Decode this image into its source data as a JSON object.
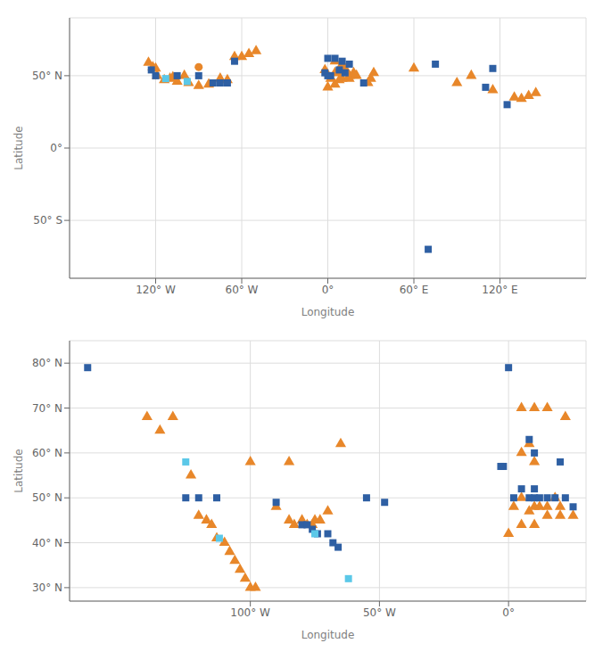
{
  "chart_data": [
    {
      "type": "scatter",
      "x_label": "Longitude",
      "y_label": "Latitude",
      "xlim": [
        -180,
        180
      ],
      "ylim": [
        -90,
        90
      ],
      "xticks": [
        {
          "value": -120,
          "label": "120° W"
        },
        {
          "value": -60,
          "label": "60° W"
        },
        {
          "value": 0,
          "label": "0°"
        },
        {
          "value": 60,
          "label": "60° E"
        },
        {
          "value": 120,
          "label": "120° E"
        }
      ],
      "yticks": [
        {
          "value": -50,
          "label": "50° S"
        },
        {
          "value": 0,
          "label": "0°"
        },
        {
          "value": 50,
          "label": "50° N"
        }
      ],
      "grid": true,
      "series": [
        {
          "color": "#E8872A",
          "marker": "triangle",
          "x": [
            -125,
            -122,
            -120,
            -65,
            -60,
            -55,
            -50,
            -119,
            -114,
            -110,
            -108,
            -105,
            -100,
            -97,
            -90,
            -83,
            -75,
            -70,
            5,
            10,
            8,
            15,
            20,
            2,
            5,
            -2,
            0,
            5,
            10,
            15,
            28,
            30,
            32,
            60,
            90,
            100,
            115,
            130,
            135,
            140,
            145,
            12,
            8,
            18
          ],
          "values": [
            59,
            56,
            55,
            63,
            63,
            65,
            67,
            50,
            47,
            48,
            49,
            46,
            50,
            45,
            43,
            44,
            48,
            47,
            60,
            58,
            52,
            50,
            50,
            48,
            52,
            54,
            42,
            44,
            48,
            48,
            45,
            48,
            52,
            55,
            45,
            50,
            40,
            35,
            34,
            36,
            38,
            55,
            47,
            52
          ]
        },
        {
          "color": "#2E5FA3",
          "marker": "square",
          "x": [
            -123,
            -120,
            -105,
            -90,
            -80,
            -75,
            -70,
            -65,
            5,
            10,
            8,
            12,
            2,
            -2,
            0,
            25,
            110,
            125,
            75,
            115,
            70,
            0,
            15
          ],
          "values": [
            54,
            50,
            50,
            50,
            45,
            45,
            45,
            60,
            62,
            60,
            54,
            52,
            50,
            52,
            50,
            45,
            42,
            30,
            58,
            55,
            -70,
            62,
            58
          ]
        },
        {
          "color": "#5BC8E8",
          "marker": "square",
          "x": [
            -113,
            -98
          ],
          "values": [
            48,
            46
          ]
        },
        {
          "color": "#E8872A",
          "marker": "circle",
          "x": [
            -90
          ],
          "values": [
            56
          ]
        }
      ]
    },
    {
      "type": "scatter",
      "x_label": "Longitude",
      "y_label": "Latitude",
      "xlim": [
        -170,
        30
      ],
      "ylim": [
        27,
        85
      ],
      "xticks": [
        {
          "value": -100,
          "label": "100° W"
        },
        {
          "value": -50,
          "label": "50° W"
        },
        {
          "value": 0,
          "label": "0°"
        }
      ],
      "yticks": [
        {
          "value": 30,
          "label": "30° N"
        },
        {
          "value": 40,
          "label": "40° N"
        },
        {
          "value": 50,
          "label": "50° N"
        },
        {
          "value": 60,
          "label": "60° N"
        },
        {
          "value": 70,
          "label": "70° N"
        },
        {
          "value": 80,
          "label": "80° N"
        }
      ],
      "grid": true,
      "series": [
        {
          "color": "#E8872A",
          "marker": "triangle",
          "x": [
            -140,
            -135,
            -130,
            -123,
            -120,
            -117,
            -115,
            -113,
            -110,
            -108,
            -106,
            -104,
            -102,
            -100,
            -98,
            -90,
            -85,
            -83,
            -80,
            -78,
            -76,
            -75,
            -73,
            -70,
            -65,
            10,
            15,
            5,
            10,
            8,
            2,
            5,
            8,
            10,
            12,
            15,
            20,
            18,
            0,
            5,
            10,
            15,
            20,
            25,
            5,
            22,
            -100,
            -85
          ],
          "values": [
            68,
            65,
            68,
            55,
            46,
            45,
            44,
            41,
            40,
            38,
            36,
            34,
            32,
            30,
            30,
            48,
            45,
            44,
            45,
            44,
            44,
            45,
            45,
            47,
            62,
            70,
            70,
            60,
            58,
            62,
            48,
            50,
            47,
            48,
            48,
            48,
            48,
            50,
            42,
            44,
            44,
            46,
            46,
            46,
            70,
            68,
            58,
            58
          ]
        },
        {
          "color": "#2E5FA3",
          "marker": "square",
          "x": [
            -163,
            -125,
            -120,
            -113,
            -90,
            -80,
            -78,
            -76,
            -74,
            -70,
            -68,
            -66,
            8,
            10,
            -2,
            -3,
            5,
            10,
            2,
            8,
            10,
            12,
            15,
            18,
            22,
            25,
            20,
            0,
            -48,
            -55
          ],
          "values": [
            79,
            50,
            50,
            50,
            49,
            44,
            44,
            43,
            42,
            42,
            40,
            39,
            63,
            60,
            57,
            57,
            52,
            52,
            50,
            50,
            50,
            50,
            50,
            50,
            50,
            48,
            58,
            79,
            49,
            50
          ]
        },
        {
          "color": "#5BC8E8",
          "marker": "square",
          "x": [
            -125,
            -112,
            -75,
            -62
          ],
          "values": [
            58,
            41,
            42,
            32
          ]
        }
      ]
    }
  ]
}
